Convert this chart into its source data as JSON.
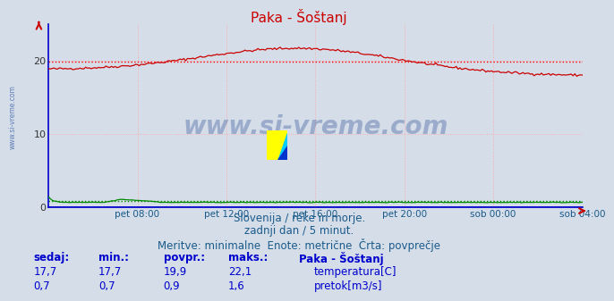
{
  "title": "Paka - Šoštanj",
  "background_color": "#d4dde8",
  "plot_bg_color": "#d4dde8",
  "grid_color": "#ffaaaa",
  "avg_temp_color": "#ff0000",
  "avg_pretok_color": "#00aa00",
  "avg_temp": 19.9,
  "avg_pretok_scaled": 0.14,
  "x_end": 288,
  "y_min": 0,
  "y_max": 25,
  "yticks": [
    0,
    10,
    20
  ],
  "xtick_labels": [
    "pet 08:00",
    "pet 12:00",
    "pet 16:00",
    "pet 20:00",
    "sob 00:00",
    "sob 04:00"
  ],
  "xtick_positions": [
    48,
    96,
    144,
    192,
    240,
    288
  ],
  "temp_color": "#cc0000",
  "pretok_color": "#008800",
  "visina_color": "#0000cc",
  "axis_color": "#0000cc",
  "watermark_text": "www.si-vreme.com",
  "watermark_color": "#1a3a8a",
  "watermark_alpha": 0.3,
  "subtitle_lines": [
    "Slovenija / reke in morje.",
    "zadnji dan / 5 minut.",
    "Meritve: minimalne  Enote: metrične  Črta: povprečje"
  ],
  "subtitle_color": "#1a5a8a",
  "subtitle_fontsize": 8.5,
  "table_headers": [
    "sedaj:",
    "min.:",
    "povpr.:",
    "maks.:"
  ],
  "table_color": "#0000cc",
  "station_name": "Paka - Šoštanj",
  "rows": [
    {
      "sedaj": "17,7",
      "min": "17,7",
      "povpr": "19,9",
      "maks": "22,1",
      "color": "#cc0000",
      "label": "temperatura[C]"
    },
    {
      "sedaj": "0,7",
      "min": "0,7",
      "povpr": "0,9",
      "maks": "1,6",
      "color": "#008800",
      "label": "pretok[m3/s]"
    }
  ]
}
